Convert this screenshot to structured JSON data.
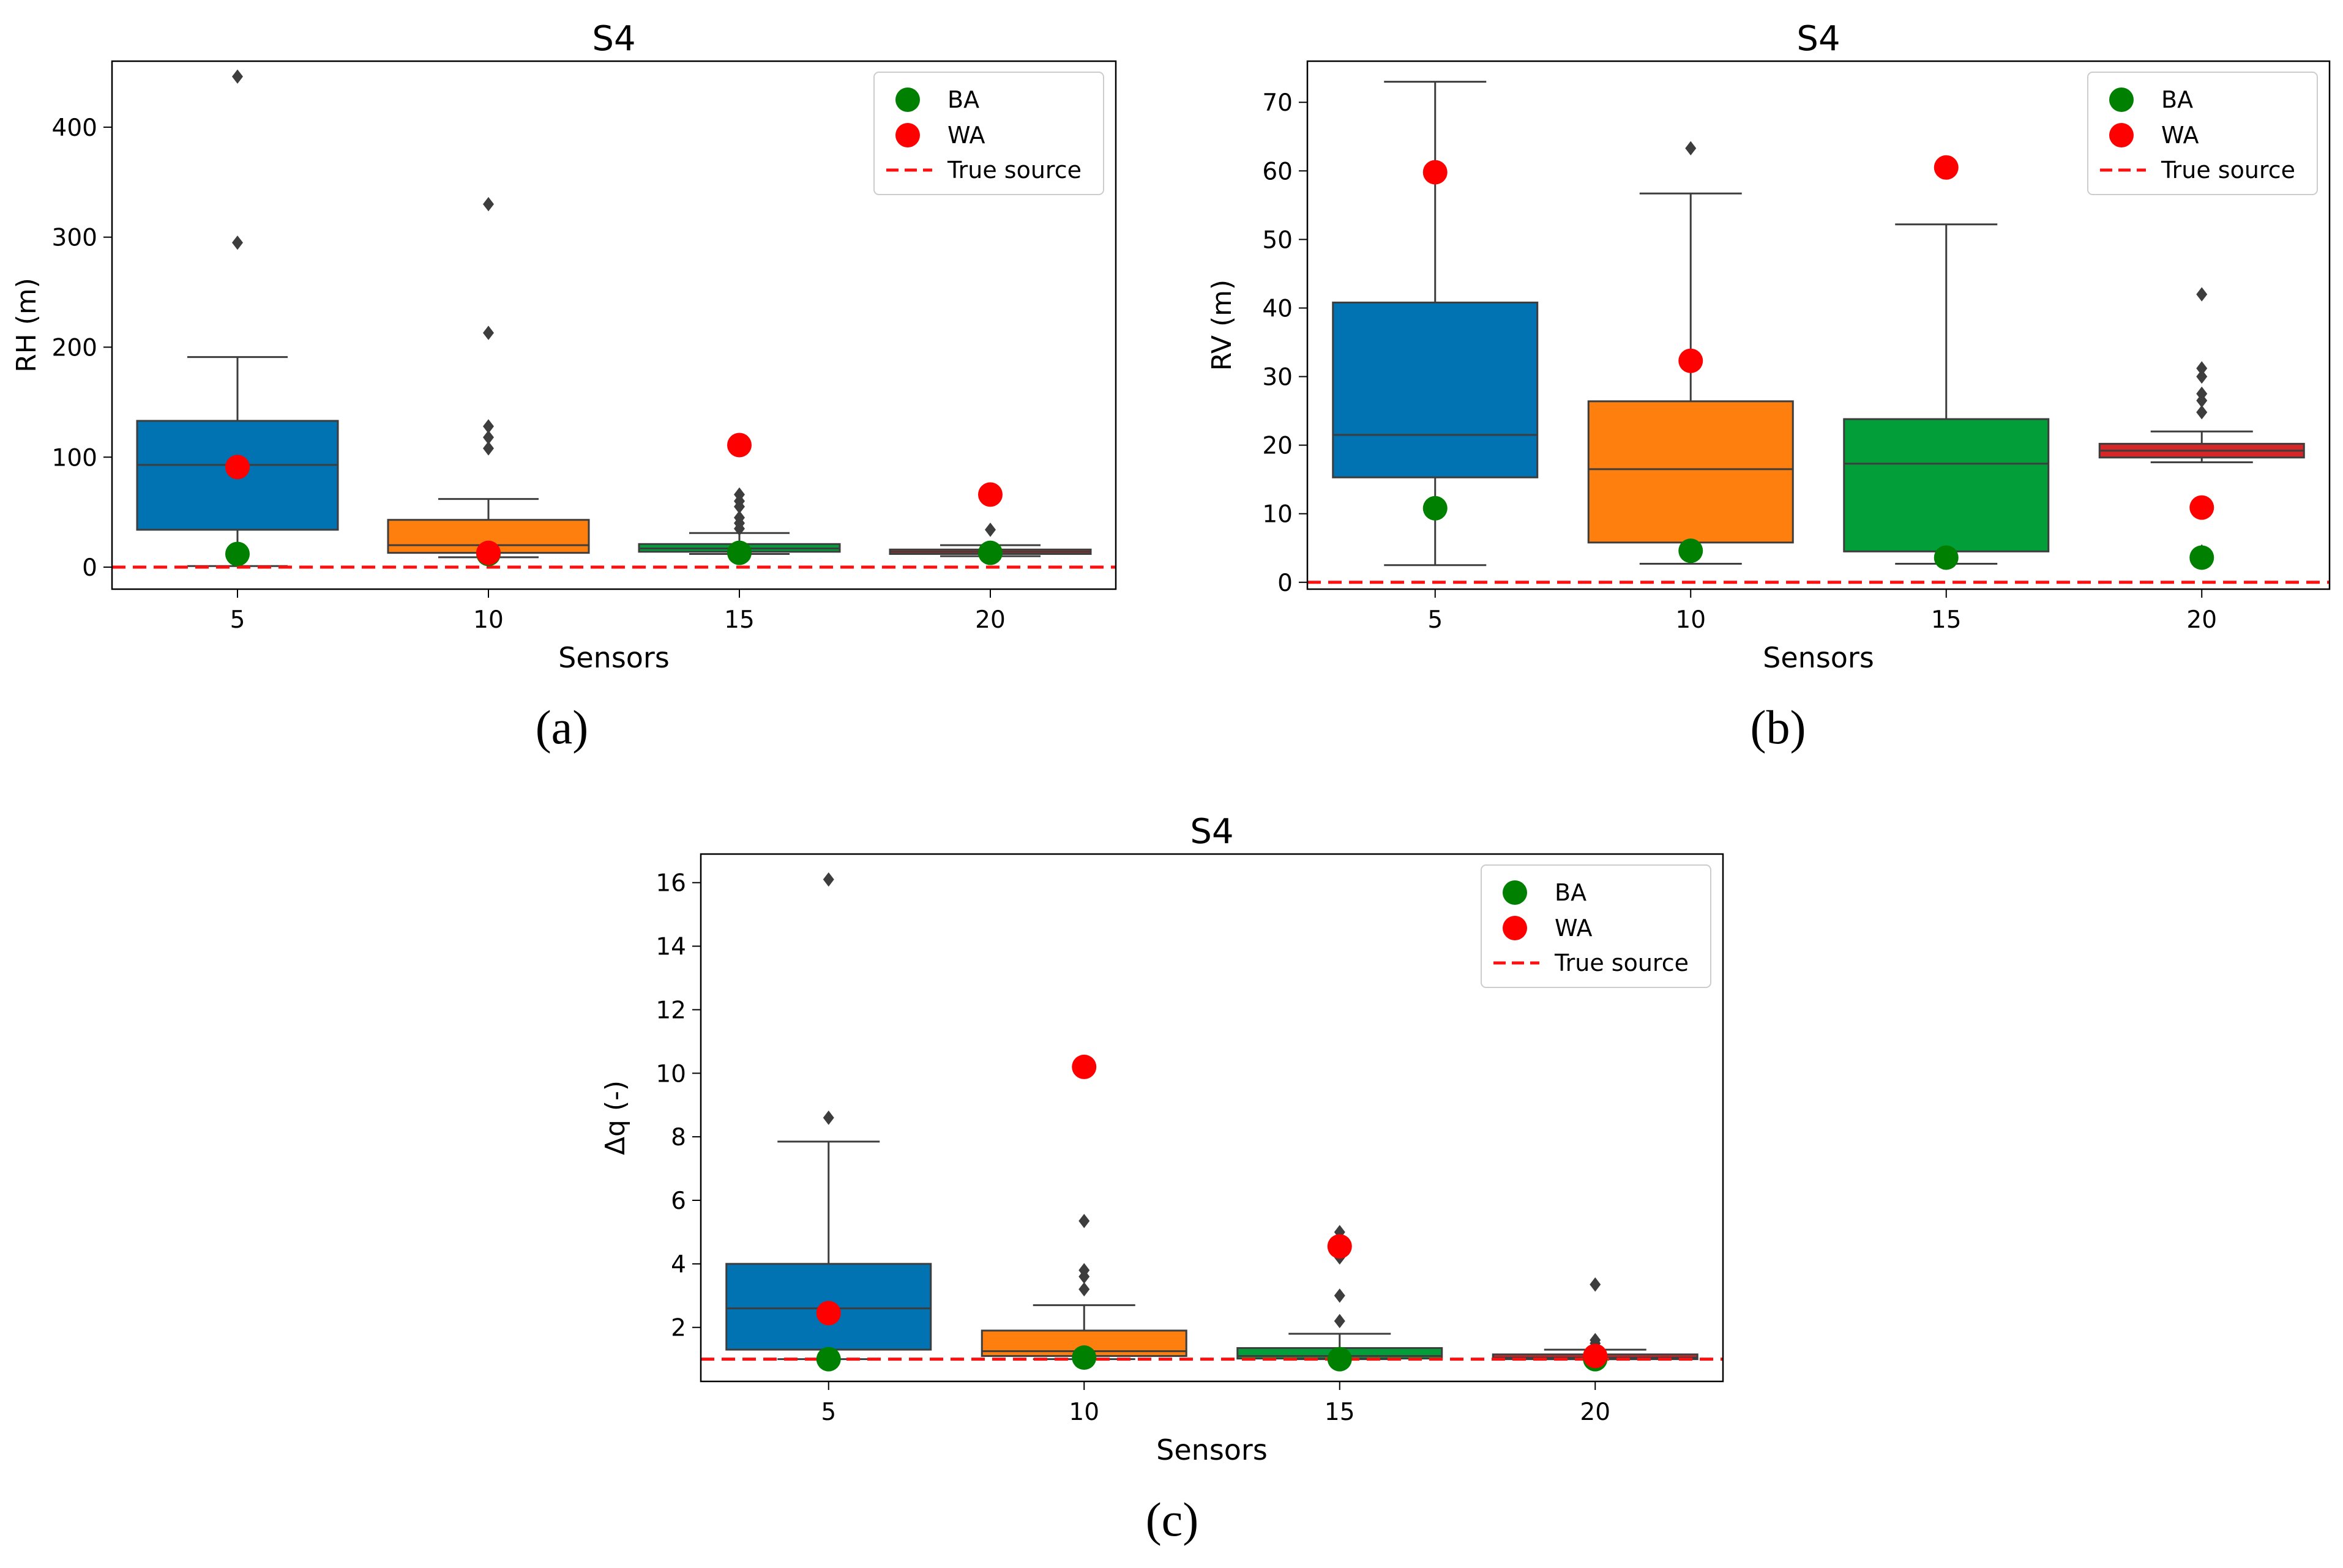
{
  "chart_data": [
    {
      "type": "box",
      "panel_label": "(a)",
      "title": "S4",
      "xlabel": "Sensors",
      "ylabel": "RH (m)",
      "categories": [
        "5",
        "10",
        "15",
        "20"
      ],
      "yticks": [
        0,
        100,
        200,
        300,
        400
      ],
      "ylim": [
        -20,
        460
      ],
      "box_colors": [
        "#0173b2",
        "#ff7f0e",
        "#029e3a",
        "#d62728"
      ],
      "boxes": [
        {
          "whisker_low": 1,
          "q1": 34,
          "median": 93,
          "q3": 133,
          "whisker_high": 191,
          "outliers": [
            295,
            446
          ]
        },
        {
          "whisker_low": 9,
          "q1": 13,
          "median": 20,
          "q3": 43,
          "whisker_high": 62,
          "outliers": [
            108,
            118,
            128,
            213,
            330
          ]
        },
        {
          "whisker_low": 12,
          "q1": 14,
          "median": 17,
          "q3": 21,
          "whisker_high": 31,
          "outliers": [
            35,
            40,
            45,
            55,
            60,
            66,
            110
          ]
        },
        {
          "whisker_low": 10,
          "q1": 12,
          "median": 14,
          "q3": 16,
          "whisker_high": 20,
          "outliers": [
            34
          ]
        }
      ],
      "BA": [
        12,
        12,
        13,
        13
      ],
      "WA": [
        91,
        13,
        111,
        66
      ],
      "true_source": 0,
      "legend": {
        "BA": "BA",
        "WA": "WA",
        "true_source": "True source"
      },
      "legend_position": "top-right"
    },
    {
      "type": "box",
      "panel_label": "(b)",
      "title": "S4",
      "xlabel": "Sensors",
      "ylabel": "RV (m)",
      "categories": [
        "5",
        "10",
        "15",
        "20"
      ],
      "yticks": [
        0,
        10,
        20,
        30,
        40,
        50,
        60,
        70
      ],
      "ylim": [
        -1,
        76
      ],
      "box_colors": [
        "#0173b2",
        "#ff7f0e",
        "#029e3a",
        "#d62728"
      ],
      "boxes": [
        {
          "whisker_low": 2.5,
          "q1": 15.3,
          "median": 21.5,
          "q3": 40.8,
          "whisker_high": 73,
          "outliers": []
        },
        {
          "whisker_low": 2.7,
          "q1": 5.8,
          "median": 16.5,
          "q3": 26.4,
          "whisker_high": 56.7,
          "outliers": [
            63.3
          ]
        },
        {
          "whisker_low": 2.7,
          "q1": 4.5,
          "median": 17.3,
          "q3": 23.8,
          "whisker_high": 52.2,
          "outliers": []
        },
        {
          "whisker_low": 17.5,
          "q1": 18.2,
          "median": 19.2,
          "q3": 20.2,
          "whisker_high": 22,
          "outliers": [
            24.8,
            26.5,
            27.5,
            30,
            31.2,
            42,
            4.5,
            3.5
          ]
        }
      ],
      "BA": [
        10.8,
        4.6,
        3.6,
        3.6
      ],
      "WA": [
        59.8,
        32.3,
        60.5,
        10.9
      ],
      "true_source": 0,
      "legend": {
        "BA": "BA",
        "WA": "WA",
        "true_source": "True source"
      },
      "legend_position": "top-right"
    },
    {
      "type": "box",
      "panel_label": "(c)",
      "title": "S4",
      "xlabel": "Sensors",
      "ylabel": "Δq (-)",
      "categories": [
        "5",
        "10",
        "15",
        "20"
      ],
      "yticks": [
        2,
        4,
        6,
        8,
        10,
        12,
        14,
        16
      ],
      "ylim": [
        0.3,
        16.9
      ],
      "box_colors": [
        "#0173b2",
        "#ff7f0e",
        "#029e3a",
        "#d62728"
      ],
      "boxes": [
        {
          "whisker_low": 1.0,
          "q1": 1.3,
          "median": 2.6,
          "q3": 4.0,
          "whisker_high": 7.85,
          "outliers": [
            8.6,
            16.1
          ]
        },
        {
          "whisker_low": 1.0,
          "q1": 1.1,
          "median": 1.25,
          "q3": 1.9,
          "whisker_high": 2.7,
          "outliers": [
            3.2,
            3.6,
            3.8,
            5.35
          ]
        },
        {
          "whisker_low": 1.0,
          "q1": 1.02,
          "median": 1.1,
          "q3": 1.35,
          "whisker_high": 1.8,
          "outliers": [
            2.2,
            3.0,
            4.2,
            4.5,
            4.75,
            5.0
          ]
        },
        {
          "whisker_low": 1.0,
          "q1": 1.0,
          "median": 1.05,
          "q3": 1.15,
          "whisker_high": 1.3,
          "outliers": [
            1.5,
            1.6,
            3.35
          ]
        }
      ],
      "BA": [
        1.0,
        1.05,
        1.0,
        1.0
      ],
      "WA": [
        2.45,
        10.2,
        4.55,
        1.1
      ],
      "true_source": 1,
      "legend": {
        "BA": "BA",
        "WA": "WA",
        "true_source": "True source"
      },
      "legend_position": "top-right"
    }
  ]
}
